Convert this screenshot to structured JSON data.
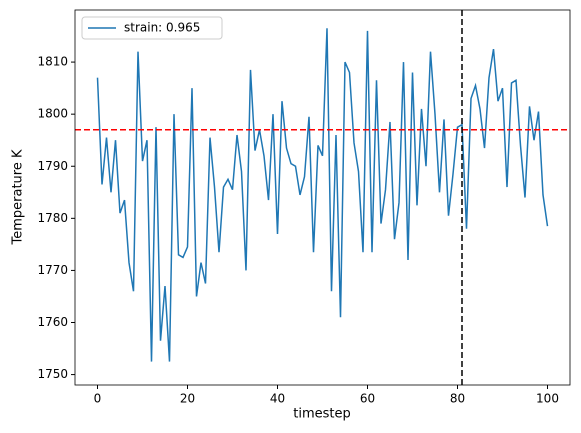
{
  "chart_data": {
    "type": "line",
    "x_label": "timestep",
    "y_label": "Temperature K",
    "x": [
      0,
      1,
      2,
      3,
      4,
      5,
      6,
      7,
      8,
      9,
      10,
      11,
      12,
      13,
      14,
      15,
      16,
      17,
      18,
      19,
      20,
      21,
      22,
      23,
      24,
      25,
      26,
      27,
      28,
      29,
      30,
      31,
      32,
      33,
      34,
      35,
      36,
      37,
      38,
      39,
      40,
      41,
      42,
      43,
      44,
      45,
      46,
      47,
      48,
      49,
      50,
      51,
      52,
      53,
      54,
      55,
      56,
      57,
      58,
      59,
      60,
      61,
      62,
      63,
      64,
      65,
      66,
      67,
      68,
      69,
      70,
      71,
      72,
      73,
      74,
      75,
      76,
      77,
      78,
      79,
      80,
      81,
      82,
      83,
      84,
      85,
      86,
      87,
      88,
      89,
      90,
      91,
      92,
      93,
      94,
      95,
      96,
      97,
      98,
      99,
      100
    ],
    "series": [
      {
        "name": "strain: 0.965",
        "color": "#1f77b4",
        "values": [
          1807,
          1786.5,
          1795.5,
          1785,
          1795,
          1781,
          1783.5,
          1771.5,
          1766,
          1812,
          1791,
          1795,
          1752.5,
          1797.5,
          1756.5,
          1767,
          1752.5,
          1800,
          1773,
          1772.5,
          1774.5,
          1805,
          1765,
          1771.5,
          1767.5,
          1795.5,
          1786,
          1773.5,
          1786,
          1787.5,
          1785.5,
          1796,
          1789,
          1770,
          1808.5,
          1793,
          1797,
          1792,
          1783.5,
          1800,
          1777,
          1802.5,
          1793.5,
          1790.5,
          1790,
          1784.5,
          1788,
          1799.5,
          1773.5,
          1794,
          1792,
          1816.5,
          1766,
          1796,
          1761,
          1810,
          1808,
          1794.5,
          1789,
          1773.5,
          1816,
          1773.5,
          1806.5,
          1779,
          1785.5,
          1798.5,
          1776,
          1783,
          1810,
          1772,
          1808,
          1782.5,
          1801,
          1790,
          1812,
          1800,
          1785,
          1799,
          1780.5,
          1788.5,
          1797.5,
          1798,
          1778,
          1803,
          1805.5,
          1801,
          1793.5,
          1807,
          1812.5,
          1802.5,
          1805,
          1786,
          1806,
          1806.5,
          1794,
          1784,
          1801.5,
          1795,
          1800.5,
          1784.5,
          1778.5
        ]
      }
    ],
    "hline": {
      "y": 1797,
      "color": "#ff0000"
    },
    "vline": {
      "x": 81,
      "color": "#000000"
    },
    "xlim": [
      -5,
      105
    ],
    "ylim": [
      1748,
      1820
    ],
    "xticks": [
      0,
      20,
      40,
      60,
      80,
      100
    ],
    "yticks": [
      1750,
      1760,
      1770,
      1780,
      1790,
      1800,
      1810
    ],
    "legend": "upper left"
  }
}
